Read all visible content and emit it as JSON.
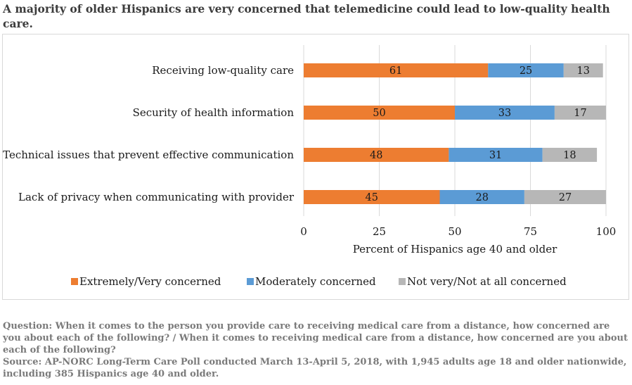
{
  "title": "A majority of older Hispanics are very concerned that telemedicine could lead to low-quality health care.",
  "chart_data": {
    "type": "bar",
    "orientation": "horizontal",
    "stacked": true,
    "categories": [
      "Receiving low-quality care",
      "Security of health information",
      "Technical issues that prevent effective communication",
      "Lack of privacy when communicating with provider"
    ],
    "series": [
      {
        "name": "Extremely/Very concerned",
        "color": "#ed7d31",
        "values": [
          61,
          50,
          48,
          45
        ]
      },
      {
        "name": "Moderately concerned",
        "color": "#5b9bd5",
        "values": [
          25,
          33,
          31,
          28
        ]
      },
      {
        "name": "Not very/Not at all concerned",
        "color": "#b7b7b7",
        "values": [
          13,
          17,
          18,
          27
        ]
      }
    ],
    "xlim": [
      0,
      100
    ],
    "xticks": [
      0,
      25,
      50,
      75,
      100
    ],
    "xlabel": "Percent of Hispanics age 40 and older",
    "grid": "vertical",
    "legend_position": "bottom"
  },
  "notes": {
    "question": "Question: When it comes to the person you provide care to receiving medical care from a distance, how concerned are you about each of the following? / When it comes to receiving medical care from a distance, how concerned are you about each of the following?",
    "source": "Source: AP-NORC Long-Term Care Poll conducted March 13-April 5, 2018, with 1,945 adults age 18 and older nationwide, including 385 Hispanics age 40 and older."
  }
}
